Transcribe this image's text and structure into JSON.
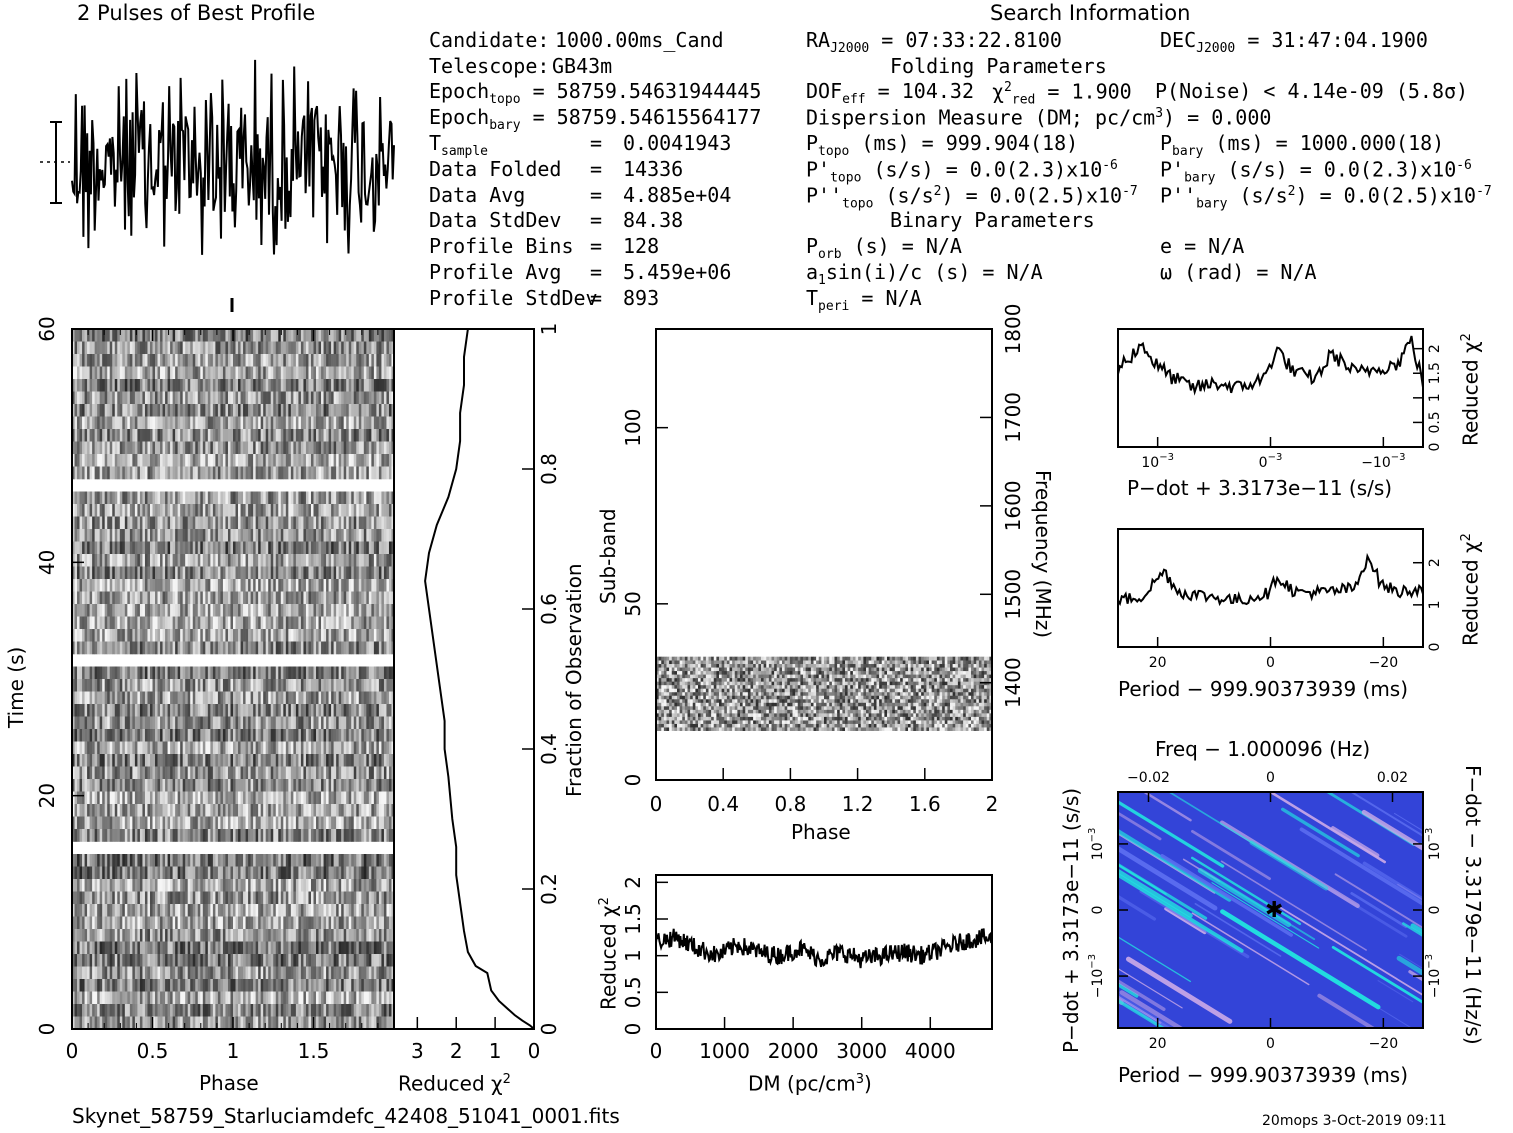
{
  "profile_title": "2 Pulses of Best Profile",
  "search_info_title": "Search Information",
  "candidate": {
    "label": "Candidate:",
    "value": "1000.00ms_Cand"
  },
  "telescope": {
    "label": "Telescope:",
    "value": "GB43m"
  },
  "epoch_topo": {
    "label": "Epoch",
    "sub": "topo",
    "value": "= 58759.54631944445"
  },
  "epoch_bary": {
    "label": "Epoch",
    "sub": "bary",
    "value": "= 58759.54615564177"
  },
  "tsample": {
    "label": "T",
    "sub": "sample",
    "eq": "=",
    "value": "0.0041943"
  },
  "data_folded": {
    "label": "Data Folded",
    "eq": "=",
    "value": "14336"
  },
  "data_avg": {
    "label": "Data Avg",
    "eq": "=",
    "value": "4.885e+04"
  },
  "data_stddev": {
    "label": "Data StdDev",
    "eq": "=",
    "value": "84.38"
  },
  "profile_bins": {
    "label": "Profile Bins",
    "eq": "=",
    "value": "128"
  },
  "profile_avg": {
    "label": "Profile Avg",
    "eq": "=",
    "value": "5.459e+06"
  },
  "profile_stddev": {
    "label": "Profile StdDev",
    "eq": "=",
    "value": "893"
  },
  "ra": {
    "label": "RA",
    "sub": "J2000",
    "value": "= 07:33:22.8100"
  },
  "dec": {
    "label": "DEC",
    "sub": "J2000",
    "value": "= 31:47:04.1900"
  },
  "folding_title": "Folding Parameters",
  "dof": {
    "label": "DOF",
    "sub": "eff",
    "value": "= 104.32"
  },
  "chi2": {
    "sym": "χ",
    "sup": "2",
    "sub": "red",
    "value": "= 1.900"
  },
  "pnoise": "P(Noise) < 4.14e-09   (5.8σ)",
  "dm_line": {
    "pre": "Dispersion Measure (DM; pc/cm",
    "sup": "3",
    "post": ") = 0.000"
  },
  "ptopo": {
    "label": "P",
    "sub": "topo",
    "value": "(ms) =  999.904(18)"
  },
  "pbary": {
    "label": "P",
    "sub": "bary",
    "value": "(ms) =  1000.000(18)"
  },
  "pdtopo": {
    "label": "P'",
    "sub": "topo",
    "value": "(s/s) = 0.0(2.3)x10",
    "exp": "-6"
  },
  "pdbary": {
    "label": "P'",
    "sub": "bary",
    "value": "(s/s) = 0.0(2.3)x10",
    "exp": "-6"
  },
  "pddtopo": {
    "label": "P''",
    "sub": "topo",
    "value": "(s/s",
    "sup": "2",
    "value2": ") = 0.0(2.5)x10",
    "exp": "-7"
  },
  "pddbary": {
    "label": "P''",
    "sub": "bary",
    "value": "(s/s",
    "sup": "2",
    "value2": ") = 0.0(2.5)x10",
    "exp": "-7"
  },
  "binary_title": "Binary Parameters",
  "porb": {
    "label": "P",
    "sub": "orb",
    "value": "(s) = N/A"
  },
  "ecc": "e = N/A",
  "a1sini": {
    "label": "a",
    "sub": "1",
    "value": "sin(i)/c (s) = N/A"
  },
  "omega": "ω (rad) = N/A",
  "tperi": {
    "label": "T",
    "sub": "peri",
    "value": "= N/A"
  },
  "filename": "Skynet_58759_Starluciamdefc_42408_51041_0001.fits",
  "footer_right": "20mops   3-Oct-2019 09:11",
  "colors": {
    "ink": "#000000",
    "ppdot_bg": "#3344d8",
    "ppdot_hi": "#22e0e0"
  },
  "chart_data": [
    {
      "id": "time-phase",
      "type": "heatmap",
      "xlabel": "Phase",
      "ylabel": "Time (s)",
      "xlim": [
        0,
        2
      ],
      "ylim": [
        0,
        60
      ],
      "xticks": [
        "0",
        "0.5",
        "1",
        "1.5"
      ],
      "yticks": [
        "0",
        "20",
        "40",
        "60"
      ],
      "masked_time_intervals_s": [
        [
          15.5,
          16.4
        ],
        [
          31.0,
          31.9
        ],
        [
          46.3,
          47.2
        ]
      ],
      "colormap": "grayscale"
    },
    {
      "id": "reduced-chi2-vs-fraction",
      "type": "line",
      "xlabel": "Reduced χ",
      "xlabel_sup": "2",
      "ylabel": "Fraction of Observation",
      "xlim": [
        3.6,
        0
      ],
      "ylim": [
        0,
        1
      ],
      "xticks": [
        "3",
        "2",
        "1",
        "0"
      ],
      "yticks": [
        "0",
        "0.2",
        "0.4",
        "0.6",
        "0.8",
        "1"
      ],
      "points": [
        [
          0,
          0
        ],
        [
          0.1,
          0.005
        ],
        [
          0.3,
          0.012
        ],
        [
          0.5,
          0.02
        ],
        [
          0.9,
          0.04
        ],
        [
          1.1,
          0.055
        ],
        [
          1.2,
          0.08
        ],
        [
          1.5,
          0.09
        ],
        [
          1.7,
          0.11
        ],
        [
          1.8,
          0.14
        ],
        [
          1.9,
          0.18
        ],
        [
          2.0,
          0.22
        ],
        [
          2.0,
          0.26
        ],
        [
          2.1,
          0.3
        ],
        [
          2.2,
          0.36
        ],
        [
          2.3,
          0.4
        ],
        [
          2.3,
          0.44
        ],
        [
          2.4,
          0.48
        ],
        [
          2.5,
          0.52
        ],
        [
          2.6,
          0.56
        ],
        [
          2.7,
          0.6
        ],
        [
          2.8,
          0.64
        ],
        [
          2.7,
          0.68
        ],
        [
          2.5,
          0.72
        ],
        [
          2.2,
          0.76
        ],
        [
          2.0,
          0.8
        ],
        [
          1.9,
          0.84
        ],
        [
          1.9,
          0.88
        ],
        [
          1.8,
          0.92
        ],
        [
          1.8,
          0.96
        ],
        [
          1.7,
          1.0
        ]
      ]
    },
    {
      "id": "subband-phase",
      "type": "heatmap",
      "xlabel": "Phase",
      "ylabel": "Sub-band",
      "ylabel_right": "Frequency (MHz)",
      "xlim": [
        0,
        2
      ],
      "ylim": [
        0,
        128
      ],
      "ylim_right": [
        1290,
        1800
      ],
      "xticks": [
        "0",
        "0.4",
        "0.8",
        "1.2",
        "1.6",
        "2"
      ],
      "yticks": [
        "0",
        "50",
        "100"
      ],
      "yticks_right": [
        "1400",
        "1500",
        "1600",
        "1700",
        "1800"
      ],
      "filled_subbands": [
        14,
        35
      ],
      "colormap": "grayscale"
    },
    {
      "id": "chi2-vs-dm",
      "type": "line",
      "xlabel": "DM (pc/cm",
      "xlabel_sup": "3",
      "xlabel_post": ")",
      "ylabel": "Reduced χ",
      "ylabel_sup": "2",
      "xlim": [
        0,
        4900
      ],
      "ylim": [
        0,
        2.1
      ],
      "xticks": [
        "0",
        "1000",
        "2000",
        "3000",
        "4000"
      ],
      "yticks": [
        "0",
        "0.5",
        "1",
        "1.5",
        "2"
      ],
      "points": [
        [
          0,
          1.2
        ],
        [
          300,
          1.25
        ],
        [
          600,
          1.1
        ],
        [
          900,
          1.0
        ],
        [
          1200,
          1.15
        ],
        [
          1500,
          1.05
        ],
        [
          1800,
          1.0
        ],
        [
          2100,
          1.1
        ],
        [
          2400,
          0.95
        ],
        [
          2700,
          1.05
        ],
        [
          3000,
          0.95
        ],
        [
          3300,
          1.0
        ],
        [
          3600,
          1.05
        ],
        [
          3900,
          1.0
        ],
        [
          4200,
          1.1
        ],
        [
          4500,
          1.2
        ],
        [
          4800,
          1.25
        ],
        [
          4900,
          1.2
        ]
      ]
    },
    {
      "id": "chi2-vs-pdot",
      "type": "line",
      "xlabel": "P−dot + 3.3173e−11 (s/s)",
      "ylabel": "Reduced χ",
      "ylabel_sup": "2",
      "ylim": [
        0,
        2.4
      ],
      "xticks": [
        "10",
        "0",
        "−10"
      ],
      "xtick_exp": "−3",
      "yticks": [
        "0",
        "0.5",
        "1",
        "1.5",
        "2"
      ],
      "points": [
        [
          0,
          1.6
        ],
        [
          0.05,
          1.9
        ],
        [
          0.08,
          2.1
        ],
        [
          0.12,
          1.7
        ],
        [
          0.18,
          1.4
        ],
        [
          0.25,
          1.2
        ],
        [
          0.32,
          1.3
        ],
        [
          0.4,
          1.2
        ],
        [
          0.48,
          1.4
        ],
        [
          0.52,
          2.0
        ],
        [
          0.58,
          1.5
        ],
        [
          0.65,
          1.4
        ],
        [
          0.7,
          1.9
        ],
        [
          0.78,
          1.5
        ],
        [
          0.85,
          1.6
        ],
        [
          0.92,
          1.7
        ],
        [
          0.96,
          2.2
        ],
        [
          1.0,
          1.3
        ]
      ]
    },
    {
      "id": "chi2-vs-period",
      "type": "line",
      "xlabel": "Period − 999.90373939 (ms)",
      "ylabel": "Reduced χ",
      "ylabel_sup": "2",
      "ylim": [
        0,
        2.8
      ],
      "xticks": [
        "20",
        "0",
        "−20"
      ],
      "yticks": [
        "0",
        "1",
        "2"
      ],
      "points": [
        [
          0,
          1.1
        ],
        [
          0.08,
          1.2
        ],
        [
          0.15,
          1.8
        ],
        [
          0.2,
          1.3
        ],
        [
          0.3,
          1.2
        ],
        [
          0.4,
          1.1
        ],
        [
          0.5,
          1.3
        ],
        [
          0.52,
          1.7
        ],
        [
          0.58,
          1.3
        ],
        [
          0.68,
          1.3
        ],
        [
          0.78,
          1.4
        ],
        [
          0.82,
          2.2
        ],
        [
          0.86,
          1.5
        ],
        [
          0.92,
          1.3
        ],
        [
          1.0,
          1.4
        ]
      ]
    },
    {
      "id": "p-pdot-plane",
      "type": "heatmap",
      "title": "Freq − 1.000096 (Hz)",
      "xlabel": "Period − 999.90373939 (ms)",
      "ylabel": "P−dot + 3.3173e−11 (s/s)",
      "ylabel_right": "F−dot − 3.3179e−11 (Hz/s)",
      "xticks": [
        "20",
        "0",
        "−20"
      ],
      "xticks_top": [
        "−0.02",
        "0",
        "0.02"
      ],
      "yticks": [
        "10",
        "0",
        "−10"
      ],
      "ytick_exp": "−3",
      "yticks_right": [
        "10",
        "0",
        "−10"
      ],
      "ytick_right_exp": "−3",
      "colormap": "blue-cyan-magenta"
    }
  ]
}
